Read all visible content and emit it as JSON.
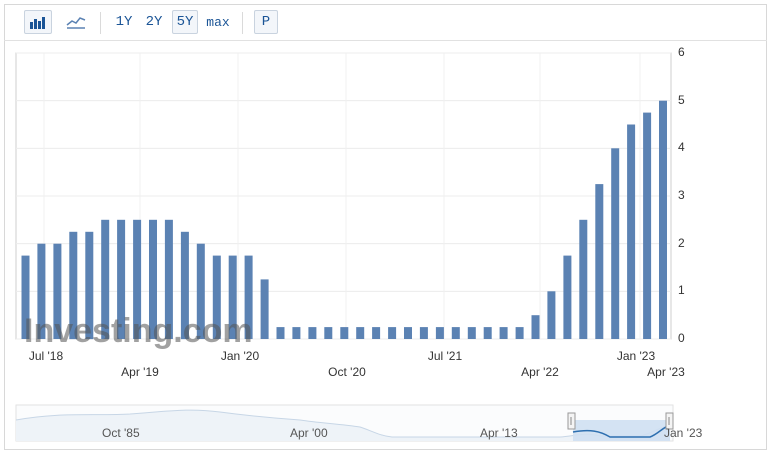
{
  "toolbar": {
    "chart_type_bar": "bar-chart-icon",
    "chart_type_line": "line-chart-icon",
    "range_1y": "1Y",
    "range_2y": "2Y",
    "range_5y": "5Y",
    "range_max": "max",
    "selected_range": "5Y",
    "period_button": "P"
  },
  "watermark": "Investing.com",
  "colors": {
    "bar": "#5b82b3",
    "accent": "#1a5496",
    "navigator_line": "#2d6fb0",
    "navigator_fill": "#cfe0f2"
  },
  "chart_data": {
    "type": "bar",
    "ylim": [
      0,
      6
    ],
    "y_ticks": [
      "0",
      "1",
      "2",
      "3",
      "4",
      "5",
      "6"
    ],
    "x_tick_labels_row1": [
      "Jul '18",
      "Jan '20",
      "Jul '21",
      "Jan '23"
    ],
    "x_tick_labels_row2": [
      "Apr '19",
      "Oct '20",
      "Apr '22",
      "Apr '23"
    ],
    "values": [
      1.75,
      2.0,
      2.0,
      2.25,
      2.25,
      2.5,
      2.5,
      2.5,
      2.5,
      2.5,
      2.25,
      2.0,
      1.75,
      1.75,
      1.75,
      1.25,
      0.25,
      0.25,
      0.25,
      0.25,
      0.25,
      0.25,
      0.25,
      0.25,
      0.25,
      0.25,
      0.25,
      0.25,
      0.25,
      0.25,
      0.25,
      0.25,
      0.5,
      1.0,
      1.75,
      2.5,
      3.25,
      4.0,
      4.5,
      4.75,
      5.0
    ]
  },
  "navigator": {
    "labels": [
      "Oct '85",
      "Apr '00",
      "Apr '13",
      "Jan '23"
    ]
  }
}
